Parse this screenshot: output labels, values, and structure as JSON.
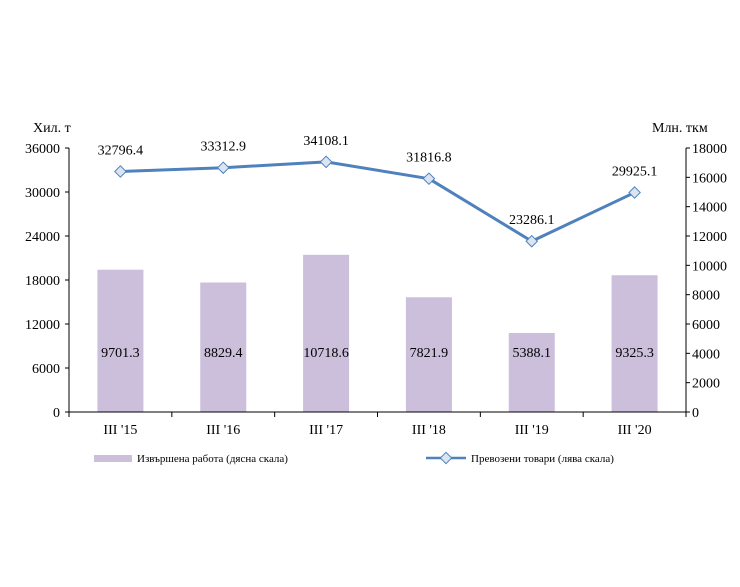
{
  "chart_data": {
    "type": "bar",
    "categories": [
      "III '15",
      "III '16",
      "III '17",
      "III '18",
      "III '19",
      "III '20"
    ],
    "series": [
      {
        "name": "Извършена работа (дясна скала)",
        "type": "bar",
        "axis": "right",
        "color": "#cbbfdb",
        "values": [
          9701.3,
          8829.4,
          10718.6,
          7821.9,
          5388.1,
          9325.3
        ]
      },
      {
        "name": "Превозени товари (лява скала)",
        "type": "line",
        "axis": "left",
        "color": "#4f81bd",
        "marker_fill": "#dbe5f1",
        "values": [
          32796.4,
          33312.9,
          34108.1,
          31816.8,
          23286.1,
          29925.1
        ]
      }
    ],
    "y_left": {
      "label": "Хил. т",
      "ylim": [
        0,
        36000
      ],
      "ticks": [
        "0",
        "6000",
        "12000",
        "18000",
        "24000",
        "30000",
        "36000"
      ]
    },
    "y_right": {
      "label": "Млн. ткм",
      "ylim": [
        0,
        18000
      ],
      "ticks": [
        "0",
        "2000",
        "4000",
        "6000",
        "8000",
        "10000",
        "12000",
        "14000",
        "16000",
        "18000"
      ]
    },
    "legend_position": "bottom",
    "grid": false
  }
}
